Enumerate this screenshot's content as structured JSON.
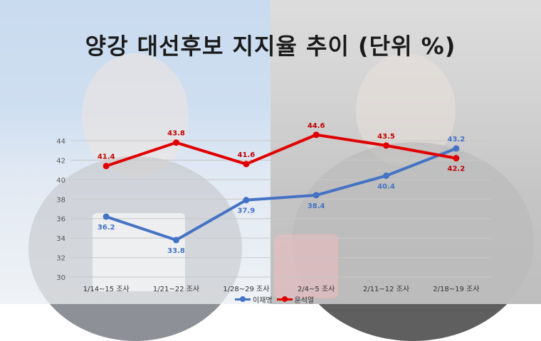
{
  "chart_data": {
    "type": "line",
    "title": "양강 대선후보 지지율 추이 (단위 %)",
    "categories": [
      "1/14~15 조사",
      "1/21~22 조사",
      "1/28~29 조사",
      "2/4~5 조사",
      "2/11~12 조사",
      "2/18~19 조사"
    ],
    "ylim": [
      30,
      44
    ],
    "yticks": [
      30,
      32,
      34,
      36,
      38,
      40,
      42,
      44
    ],
    "grid": true,
    "legend_position": "bottom",
    "series": [
      {
        "name": "이재명",
        "color": "#4472c4",
        "label_color": "#4472c4",
        "values": [
          36.2,
          33.8,
          37.9,
          38.4,
          40.4,
          43.2
        ]
      },
      {
        "name": "윤석열",
        "color": "#e00000",
        "label_color": "#c00000",
        "values": [
          41.4,
          43.8,
          41.6,
          44.6,
          43.5,
          42.2
        ]
      }
    ]
  }
}
